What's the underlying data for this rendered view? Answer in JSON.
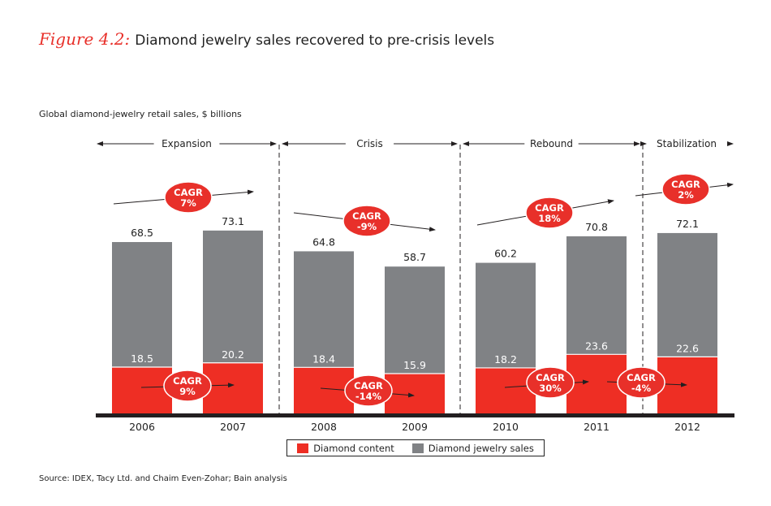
{
  "figure": {
    "number_label": "Figure 4.2:",
    "title": "Diamond jewelry sales recovered to pre-crisis levels",
    "subtitle": "Global diamond-jewelry retail sales, $ billions",
    "source": "Source:  IDEX, Tacy Ltd. and Chaim Even-Zohar; Bain analysis"
  },
  "colors": {
    "diamond_content": "#ee2e24",
    "jewelry_sales": "#808285",
    "accent": "#e8302a",
    "axis": "#231f20"
  },
  "chart_data": {
    "type": "bar",
    "stacked": false,
    "title": "Diamond jewelry sales recovered to pre-crisis levels",
    "ylabel": "Global diamond-jewelry retail sales, $ billions",
    "xlabel": "",
    "categories": [
      "2006",
      "2007",
      "2008",
      "2009",
      "2010",
      "2011",
      "2012"
    ],
    "series": [
      {
        "name": "Diamond content",
        "values": [
          18.5,
          20.2,
          18.4,
          15.9,
          18.2,
          23.6,
          22.6
        ]
      },
      {
        "name": "Diamond jewelry sales",
        "values": [
          68.5,
          73.1,
          64.8,
          58.7,
          60.2,
          70.8,
          72.1
        ]
      }
    ],
    "ylim": [
      0,
      80
    ],
    "grid": false,
    "legend": [
      "Diamond content",
      "Diamond jewelry sales"
    ],
    "legend_position": "bottom",
    "phases": [
      {
        "label": "Expansion",
        "from": "2006",
        "to": "2007"
      },
      {
        "label": "Crisis",
        "from": "2008",
        "to": "2009"
      },
      {
        "label": "Rebound",
        "from": "2010",
        "to": "2011"
      },
      {
        "label": "Stabilization",
        "from": "2012",
        "to": "2012"
      }
    ],
    "cagr_total": [
      {
        "label": "CAGR",
        "value": "7%",
        "from": "2006",
        "to": "2007"
      },
      {
        "label": "CAGR",
        "value": "-9%",
        "from": "2008",
        "to": "2009"
      },
      {
        "label": "CAGR",
        "value": "18%",
        "from": "2010",
        "to": "2011"
      },
      {
        "label": "CAGR",
        "value": "2%",
        "from": "2011",
        "to": "2012"
      }
    ],
    "cagr_content": [
      {
        "label": "CAGR",
        "value": "9%",
        "from": "2006",
        "to": "2007"
      },
      {
        "label": "CAGR",
        "value": "-14%",
        "from": "2008",
        "to": "2009"
      },
      {
        "label": "CAGR",
        "value": "30%",
        "from": "2010",
        "to": "2011"
      },
      {
        "label": "CAGR",
        "value": "-4%",
        "from": "2011",
        "to": "2012"
      }
    ]
  }
}
